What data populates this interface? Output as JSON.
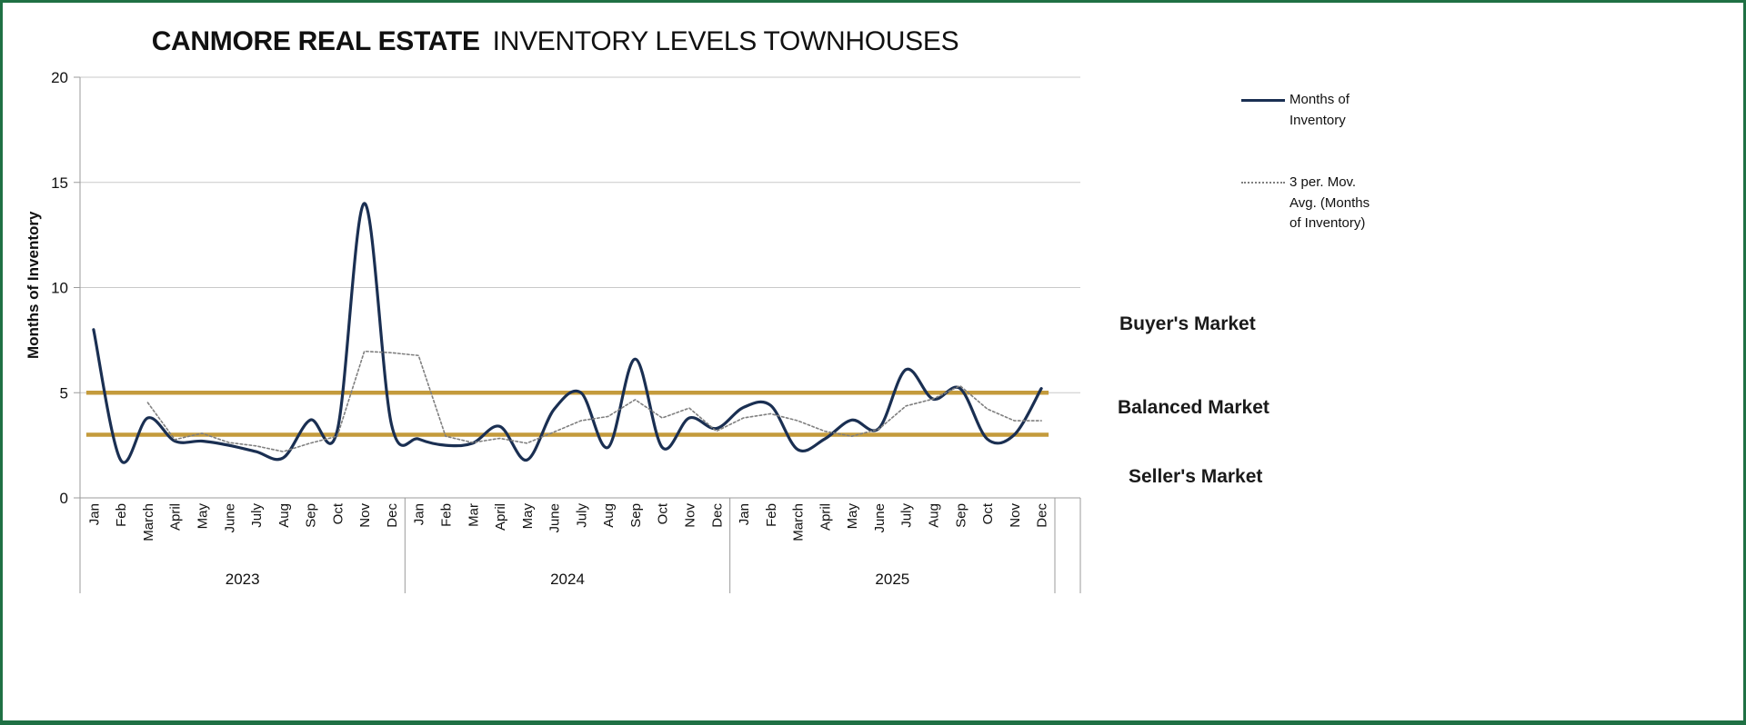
{
  "frame": {
    "border_color": "#1F7044",
    "background": "#FFFFFF"
  },
  "title": {
    "brand": "CANMORE REAL ESTATE",
    "rest": "INVENTORY LEVELS TOWNHOUSES"
  },
  "market_labels": {
    "buyers": "Buyer's Market",
    "balanced": "Balanced Market",
    "sellers": "Seller's Market"
  },
  "chart_data": {
    "type": "line",
    "title": "CANMORE REAL ESTATE INVENTORY LEVELS TOWNHOUSES",
    "ylabel": "Months of Inventory",
    "ylim": [
      0,
      20
    ],
    "yticks": [
      0,
      5,
      10,
      15,
      20
    ],
    "grid": true,
    "legend_position": "right",
    "years": [
      {
        "label": "2023",
        "months": [
          "Jan",
          "Feb",
          "March",
          "April",
          "May",
          "June",
          "July",
          "Aug",
          "Sep",
          "Oct",
          "Nov",
          "Dec"
        ]
      },
      {
        "label": "2024",
        "months": [
          "Jan",
          "Feb",
          "Mar",
          "April",
          "May",
          "June",
          "July",
          "Aug",
          "Sep",
          "Oct",
          "Nov",
          "Dec"
        ]
      },
      {
        "label": "2025",
        "months": [
          "Jan",
          "Feb",
          "March",
          "April",
          "May",
          "June",
          "July",
          "Aug",
          "Sep",
          "Oct",
          "Nov",
          "Dec"
        ]
      }
    ],
    "series": [
      {
        "name": "Months of Inventory",
        "color": "#1A2F52",
        "style": "solid",
        "smooth": true,
        "values": [
          8,
          1.8,
          3.8,
          2.7,
          2.7,
          2.5,
          2.2,
          1.9,
          3.7,
          3.2,
          14,
          3.5,
          2.8,
          2.5,
          2.6,
          3.4,
          1.8,
          4.2,
          5,
          2.4,
          6.6,
          2.4,
          3.8,
          3.3,
          4.3,
          4.4,
          2.3,
          2.8,
          3.7,
          3.3,
          6.1,
          4.7,
          5.2,
          2.8,
          3,
          5.2
        ]
      },
      {
        "name": "3 per. Mov. Avg. (Months of Inventory)",
        "color": "#7F7F7F",
        "style": "dotted",
        "smooth": false,
        "values": [
          null,
          null,
          4.53,
          2.77,
          3.07,
          2.63,
          2.47,
          2.2,
          2.6,
          2.93,
          6.97,
          6.9,
          6.77,
          2.93,
          2.63,
          2.83,
          2.6,
          3.13,
          3.67,
          3.87,
          4.67,
          3.8,
          4.27,
          3.17,
          3.8,
          4,
          3.67,
          3.17,
          2.93,
          3.27,
          4.37,
          4.7,
          5.33,
          4.23,
          3.67,
          3.67
        ]
      }
    ],
    "reference_lines": [
      {
        "value": 5,
        "color": "#C49B3C"
      },
      {
        "value": 3,
        "color": "#C49B3C"
      }
    ]
  }
}
